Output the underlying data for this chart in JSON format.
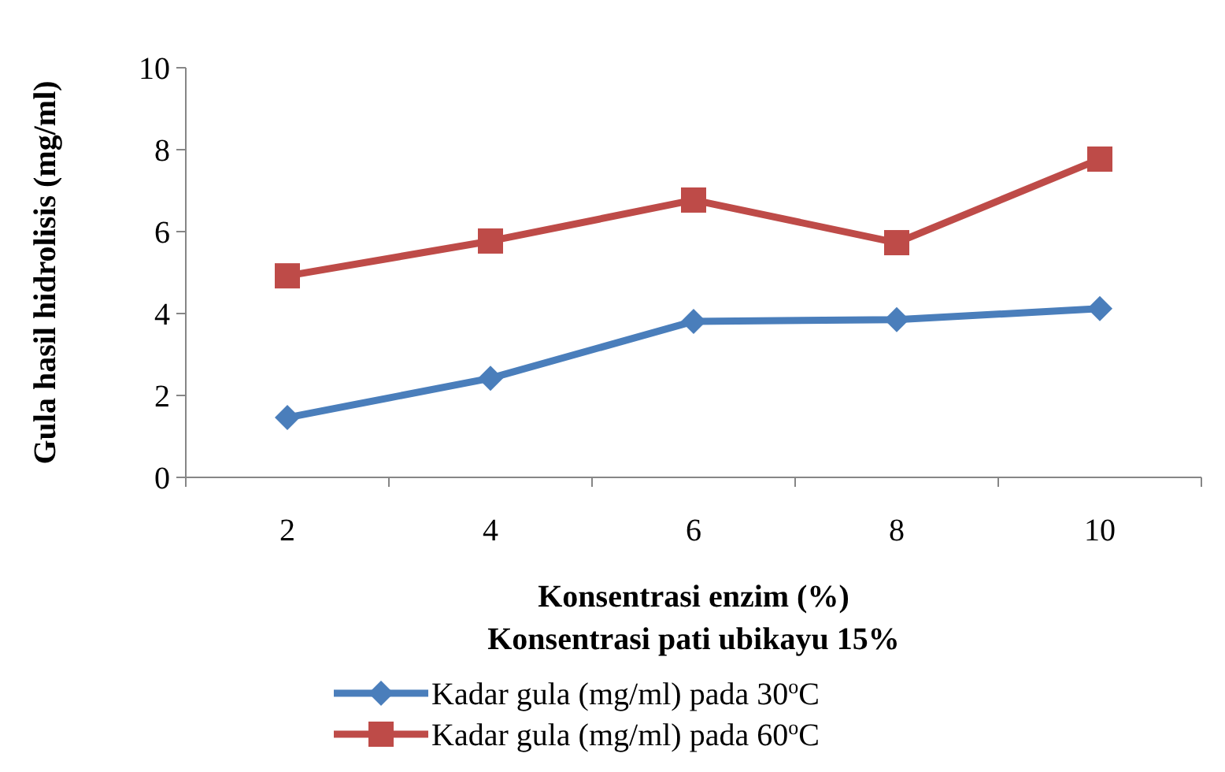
{
  "chart_data": {
    "type": "line",
    "xlabel": "Konsentrasi enzim (%)\nKonsentrasi pati ubikayu 15%",
    "ylabel": "Gula hasil hidrolisis (mg/ml)",
    "categories": [
      "2",
      "4",
      "6",
      "8",
      "10"
    ],
    "ylim": [
      0,
      10
    ],
    "yticks": [
      0,
      2,
      4,
      6,
      8,
      10
    ],
    "grid": false,
    "legend": "bottom",
    "line_style": "solid",
    "series": [
      {
        "name": "Kadar gula (mg/ml) pada 30$^{o}$C",
        "color": "#4a7ebb",
        "marker": "diamond",
        "values": [
          1.46,
          2.42,
          3.81,
          3.85,
          4.12
        ]
      },
      {
        "name": "Kadar gula (mg/ml) pada 60$^{o}$C",
        "color": "#be4b48",
        "marker": "square",
        "values": [
          4.92,
          5.77,
          6.77,
          5.73,
          7.77
        ]
      }
    ]
  }
}
